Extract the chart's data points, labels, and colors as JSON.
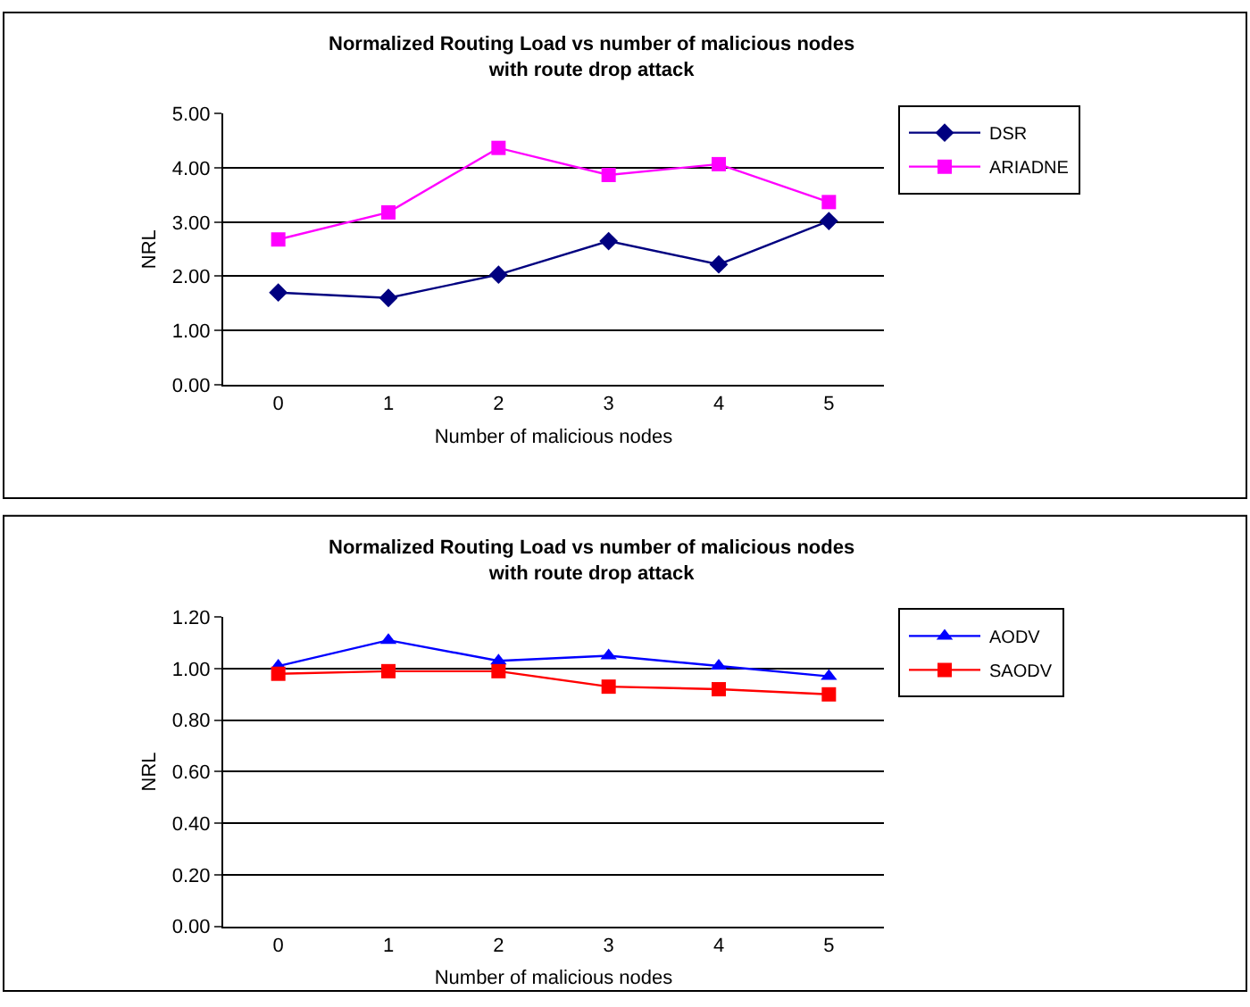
{
  "chart_data": [
    {
      "type": "line",
      "title": "Normalized Routing Load vs number of malicious nodes\nwith route drop attack",
      "xlabel": "Number of malicious nodes",
      "ylabel": "NRL",
      "categories": [
        "0",
        "1",
        "2",
        "3",
        "4",
        "5"
      ],
      "series": [
        {
          "name": "DSR",
          "color": "#000080",
          "marker": "diamond",
          "values": [
            1.7,
            1.6,
            2.03,
            2.65,
            2.22,
            3.02
          ]
        },
        {
          "name": "ARIADNE",
          "color": "#ff00ff",
          "marker": "square",
          "values": [
            2.68,
            3.18,
            4.37,
            3.87,
            4.07,
            3.37
          ]
        }
      ],
      "ylim": [
        0,
        5
      ],
      "yticks": [
        {
          "value": 0,
          "label": "0.00"
        },
        {
          "value": 1,
          "label": "1.00"
        },
        {
          "value": 2,
          "label": "2.00"
        },
        {
          "value": 3,
          "label": "3.00"
        },
        {
          "value": 4,
          "label": "4.00"
        },
        {
          "value": 5,
          "label": "5.00"
        }
      ],
      "grid": "y",
      "legend": "right",
      "line_style": "solid"
    },
    {
      "type": "line",
      "title": "Normalized Routing Load vs number of malicious nodes\nwith route drop attack",
      "xlabel": "Number of malicious nodes",
      "ylabel": "NRL",
      "categories": [
        "0",
        "1",
        "2",
        "3",
        "4",
        "5"
      ],
      "series": [
        {
          "name": "AODV",
          "color": "#0000ff",
          "marker": "triangle",
          "values": [
            1.01,
            1.11,
            1.03,
            1.05,
            1.01,
            0.97
          ]
        },
        {
          "name": "SAODV",
          "color": "#ff0000",
          "marker": "square",
          "values": [
            0.98,
            0.99,
            0.99,
            0.93,
            0.92,
            0.9
          ]
        }
      ],
      "ylim": [
        0,
        1.2
      ],
      "yticks": [
        {
          "value": 0,
          "label": "0.00"
        },
        {
          "value": 0.2,
          "label": "0.20"
        },
        {
          "value": 0.4,
          "label": "0.40"
        },
        {
          "value": 0.6,
          "label": "0.60"
        },
        {
          "value": 0.8,
          "label": "0.80"
        },
        {
          "value": 1.0,
          "label": "1.00"
        },
        {
          "value": 1.2,
          "label": "1.20"
        }
      ],
      "grid": "y",
      "legend": "right",
      "line_style": "solid"
    }
  ]
}
